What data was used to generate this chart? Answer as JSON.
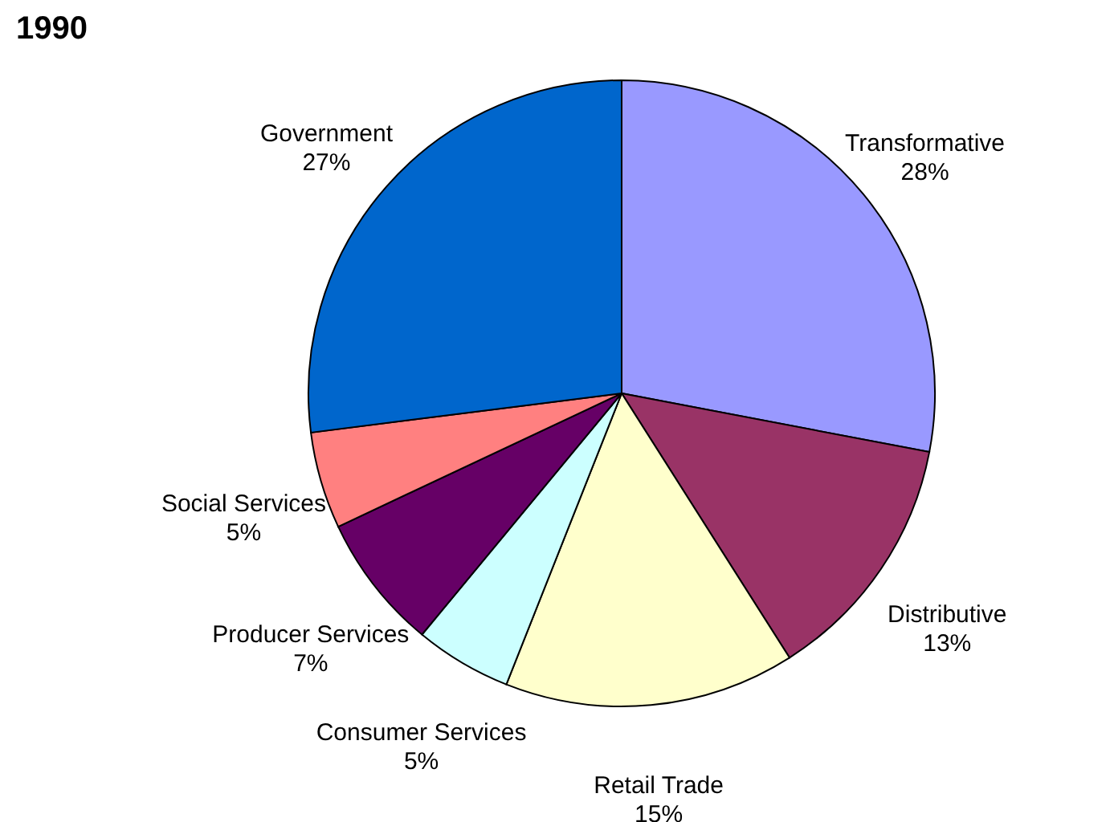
{
  "chart_data": {
    "type": "pie",
    "title": "1990",
    "categories": [
      "Transformative",
      "Distributive",
      "Retail Trade",
      "Consumer Services",
      "Producer Services",
      "Social Services",
      "Government"
    ],
    "values": [
      28,
      13,
      15,
      5,
      7,
      5,
      27
    ],
    "value_labels": [
      "28%",
      "13%",
      "15%",
      "5%",
      "7%",
      "5%",
      "27%"
    ],
    "colors": [
      "#9999ff",
      "#993366",
      "#ffffcc",
      "#ccffff",
      "#660066",
      "#ff8080",
      "#0066cc"
    ],
    "legend": false
  }
}
